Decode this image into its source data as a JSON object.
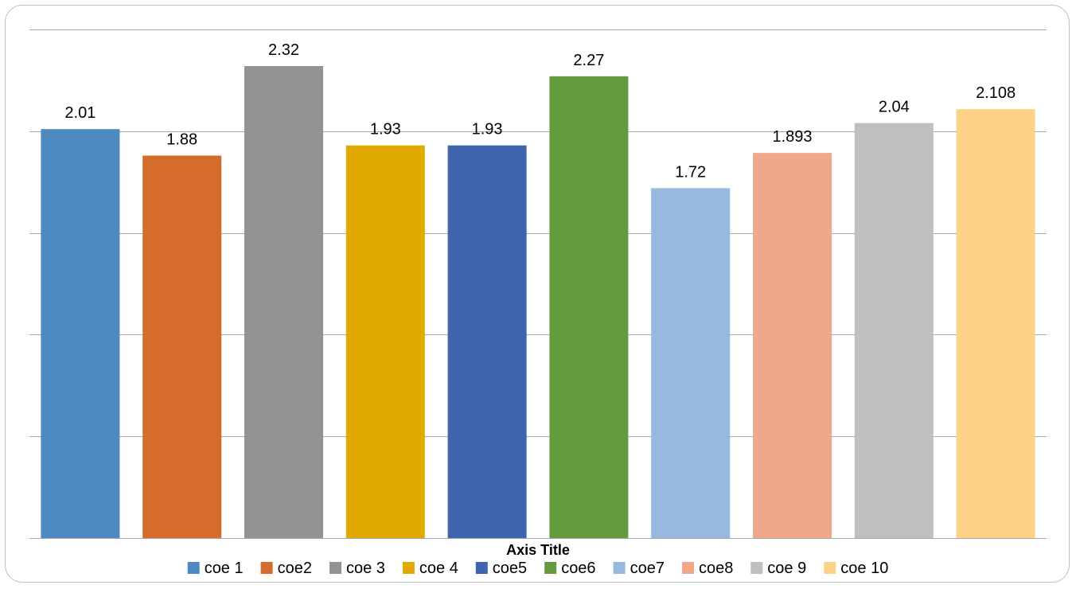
{
  "chart_data": {
    "type": "bar",
    "categories": [
      "coe 1",
      "coe2",
      "coe 3",
      "coe 4",
      "coe5",
      "coe6",
      "coe7",
      "coe8",
      "coe 9",
      "coe 10"
    ],
    "values": [
      2.01,
      1.88,
      2.32,
      1.93,
      1.93,
      2.27,
      1.72,
      1.893,
      2.04,
      2.108
    ],
    "value_labels": [
      "2.01",
      "1.88",
      "2.32",
      "1.93",
      "1.93",
      "2.27",
      "1.72",
      "1.893",
      "2.04",
      "2.108"
    ],
    "colors": [
      "#4e8ac1",
      "#d46d2b",
      "#939393",
      "#e1aa00",
      "#3d64ad",
      "#639b3e",
      "#97b9e0",
      "#f0a88b",
      "#bfbfbf",
      "#fdd186"
    ],
    "xlabel": "Axis Title",
    "ylabel": "",
    "ylim": [
      0,
      2.5
    ],
    "gridlines": [
      0,
      0.5,
      1.0,
      1.5,
      2.0,
      2.5
    ],
    "grid": true,
    "legend_position": "bottom"
  }
}
